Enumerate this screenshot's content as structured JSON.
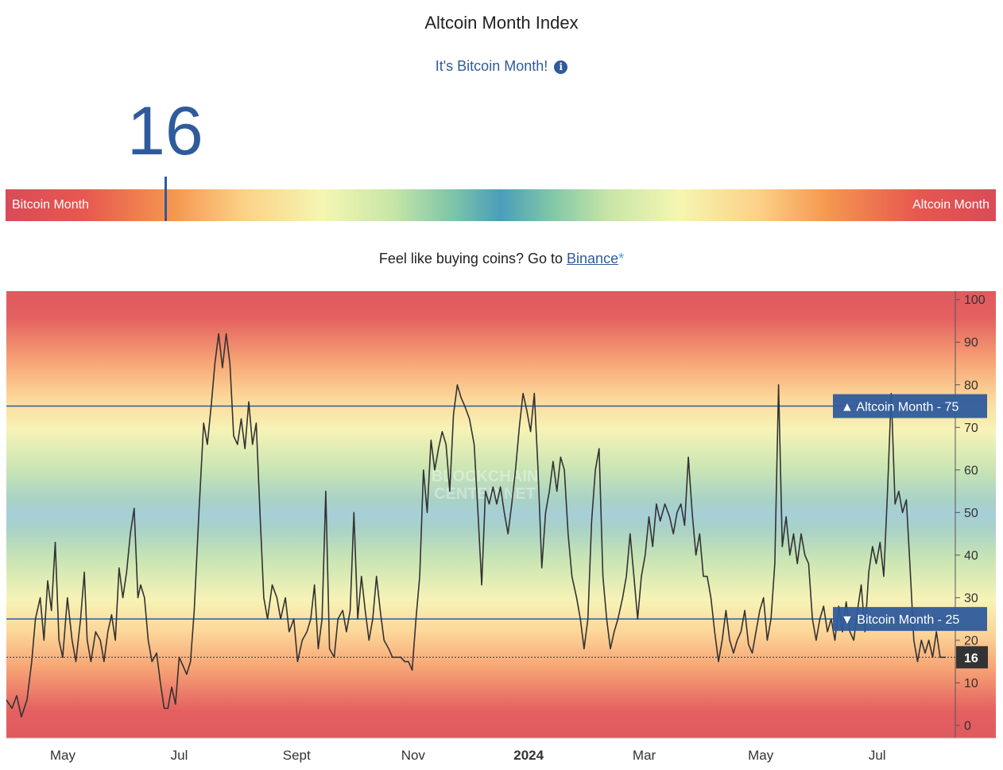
{
  "header": {
    "title": "Altcoin Month Index",
    "status": "It's Bitcoin Month!",
    "info_icon": "info-icon",
    "current_value": "16"
  },
  "gauge": {
    "left_label": "Bitcoin Month",
    "right_label": "Altcoin Month",
    "value": 16
  },
  "promo": {
    "text": "Feel like buying coins? Go to",
    "link_text": "Binance",
    "star": "*"
  },
  "watermark": [
    "BLOCKCHAIN",
    "CENTER.NET"
  ],
  "colors": {
    "accent": "#2f5b9c",
    "line": "#333333",
    "red": "#e05a5e",
    "blue_zone": "#a7cfd8"
  },
  "chart_data": {
    "type": "line",
    "title": "Altcoin Month Index",
    "ylim": [
      -3,
      102
    ],
    "yticks": [
      0,
      10,
      20,
      30,
      40,
      50,
      60,
      70,
      80,
      90,
      100
    ],
    "xlim": [
      0,
      100
    ],
    "x_labels": [
      {
        "label": "May",
        "x": 6.0,
        "bold": false
      },
      {
        "label": "Jul",
        "x": 18.4,
        "bold": false
      },
      {
        "label": "Sept",
        "x": 30.9,
        "bold": false
      },
      {
        "label": "Nov",
        "x": 43.3,
        "bold": false
      },
      {
        "label": "2024",
        "x": 55.6,
        "bold": true
      },
      {
        "label": "Mar",
        "x": 67.9,
        "bold": false
      },
      {
        "label": "May",
        "x": 80.3,
        "bold": false
      },
      {
        "label": "Jul",
        "x": 92.7,
        "bold": false
      }
    ],
    "thresholds": [
      {
        "name": "Altcoin Month",
        "value": 75,
        "symbol": "▲",
        "label": "Altcoin Month",
        "value_label": "75"
      },
      {
        "name": "Bitcoin Month",
        "value": 25,
        "symbol": "▼",
        "label": "Bitcoin Month",
        "value_label": "25"
      }
    ],
    "current": {
      "value": 16,
      "label": "16"
    },
    "series": [
      {
        "name": "Altcoin Month Index",
        "points": [
          [
            0.0,
            6
          ],
          [
            0.6,
            4
          ],
          [
            1.1,
            7
          ],
          [
            1.6,
            2
          ],
          [
            2.2,
            6
          ],
          [
            2.7,
            15
          ],
          [
            3.1,
            25
          ],
          [
            3.6,
            30
          ],
          [
            4.0,
            20
          ],
          [
            4.4,
            34
          ],
          [
            4.8,
            27
          ],
          [
            5.2,
            43
          ],
          [
            5.6,
            20
          ],
          [
            6.0,
            16
          ],
          [
            6.5,
            30
          ],
          [
            7.0,
            20
          ],
          [
            7.4,
            15
          ],
          [
            7.9,
            25
          ],
          [
            8.3,
            36
          ],
          [
            8.6,
            20
          ],
          [
            9.0,
            15
          ],
          [
            9.5,
            22
          ],
          [
            10.0,
            20
          ],
          [
            10.4,
            15
          ],
          [
            10.8,
            22
          ],
          [
            11.2,
            26
          ],
          [
            11.6,
            20
          ],
          [
            12.0,
            37
          ],
          [
            12.4,
            30
          ],
          [
            12.8,
            36
          ],
          [
            13.2,
            45
          ],
          [
            13.6,
            51
          ],
          [
            14.0,
            30
          ],
          [
            14.3,
            33
          ],
          [
            14.7,
            30
          ],
          [
            15.1,
            20
          ],
          [
            15.5,
            15
          ],
          [
            16.0,
            17
          ],
          [
            16.4,
            10
          ],
          [
            16.8,
            4
          ],
          [
            17.2,
            4
          ],
          [
            17.6,
            9
          ],
          [
            18.0,
            5
          ],
          [
            18.4,
            16
          ],
          [
            18.8,
            14
          ],
          [
            19.2,
            12
          ],
          [
            19.6,
            15
          ],
          [
            20.0,
            27
          ],
          [
            20.5,
            50
          ],
          [
            21.0,
            71
          ],
          [
            21.4,
            66
          ],
          [
            21.8,
            75
          ],
          [
            22.2,
            85
          ],
          [
            22.6,
            92
          ],
          [
            23.0,
            84
          ],
          [
            23.4,
            92
          ],
          [
            23.8,
            85
          ],
          [
            24.2,
            68
          ],
          [
            24.6,
            66
          ],
          [
            25.0,
            72
          ],
          [
            25.4,
            65
          ],
          [
            25.8,
            76
          ],
          [
            26.2,
            66
          ],
          [
            26.6,
            71
          ],
          [
            27.0,
            50
          ],
          [
            27.4,
            30
          ],
          [
            27.8,
            25
          ],
          [
            28.3,
            33
          ],
          [
            28.8,
            30
          ],
          [
            29.2,
            25
          ],
          [
            29.7,
            30
          ],
          [
            30.1,
            22
          ],
          [
            30.6,
            25
          ],
          [
            31.0,
            15
          ],
          [
            31.5,
            20
          ],
          [
            32.0,
            22
          ],
          [
            32.4,
            25
          ],
          [
            32.8,
            33
          ],
          [
            33.2,
            18
          ],
          [
            33.6,
            25
          ],
          [
            34.0,
            55
          ],
          [
            34.4,
            18
          ],
          [
            34.9,
            16
          ],
          [
            35.3,
            25
          ],
          [
            35.8,
            27
          ],
          [
            36.2,
            22
          ],
          [
            36.6,
            27
          ],
          [
            37.0,
            50
          ],
          [
            37.4,
            25
          ],
          [
            37.8,
            35
          ],
          [
            38.2,
            27
          ],
          [
            38.6,
            20
          ],
          [
            39.0,
            25
          ],
          [
            39.4,
            35
          ],
          [
            39.8,
            27
          ],
          [
            40.2,
            20
          ],
          [
            40.7,
            18
          ],
          [
            41.1,
            16
          ],
          [
            41.6,
            16
          ],
          [
            42.0,
            16
          ],
          [
            42.4,
            15
          ],
          [
            42.8,
            15
          ],
          [
            43.2,
            13
          ],
          [
            43.6,
            25
          ],
          [
            44.0,
            35
          ],
          [
            44.4,
            60
          ],
          [
            44.8,
            50
          ],
          [
            45.2,
            67
          ],
          [
            45.6,
            60
          ],
          [
            46.0,
            65
          ],
          [
            46.4,
            69
          ],
          [
            46.8,
            66
          ],
          [
            47.2,
            55
          ],
          [
            47.6,
            73
          ],
          [
            48.0,
            80
          ],
          [
            48.4,
            77
          ],
          [
            48.8,
            75
          ],
          [
            49.3,
            72
          ],
          [
            49.8,
            66
          ],
          [
            50.2,
            50
          ],
          [
            50.6,
            33
          ],
          [
            51.0,
            55
          ],
          [
            51.4,
            52
          ],
          [
            51.8,
            56
          ],
          [
            52.2,
            52
          ],
          [
            52.6,
            56
          ],
          [
            53.0,
            50
          ],
          [
            53.4,
            45
          ],
          [
            53.8,
            52
          ],
          [
            54.2,
            60
          ],
          [
            54.6,
            70
          ],
          [
            55.0,
            78
          ],
          [
            55.4,
            74
          ],
          [
            55.8,
            69
          ],
          [
            56.2,
            78
          ],
          [
            56.6,
            60
          ],
          [
            57.0,
            37
          ],
          [
            57.4,
            50
          ],
          [
            57.8,
            55
          ],
          [
            58.2,
            62
          ],
          [
            58.6,
            55
          ],
          [
            59.0,
            63
          ],
          [
            59.4,
            60
          ],
          [
            59.8,
            45
          ],
          [
            60.2,
            35
          ],
          [
            60.7,
            30
          ],
          [
            61.1,
            25
          ],
          [
            61.5,
            18
          ],
          [
            61.9,
            25
          ],
          [
            62.3,
            48
          ],
          [
            62.7,
            60
          ],
          [
            63.1,
            65
          ],
          [
            63.5,
            35
          ],
          [
            63.9,
            25
          ],
          [
            64.3,
            18
          ],
          [
            64.7,
            22
          ],
          [
            65.1,
            25
          ],
          [
            65.6,
            30
          ],
          [
            66.0,
            35
          ],
          [
            66.4,
            45
          ],
          [
            66.8,
            35
          ],
          [
            67.2,
            25
          ],
          [
            67.6,
            35
          ],
          [
            68.0,
            40
          ],
          [
            68.4,
            49
          ],
          [
            68.8,
            42
          ],
          [
            69.2,
            52
          ],
          [
            69.6,
            48
          ],
          [
            70.1,
            52
          ],
          [
            70.6,
            49
          ],
          [
            71.0,
            45
          ],
          [
            71.4,
            50
          ],
          [
            71.8,
            52
          ],
          [
            72.2,
            47
          ],
          [
            72.6,
            63
          ],
          [
            73.0,
            50
          ],
          [
            73.4,
            40
          ],
          [
            73.8,
            45
          ],
          [
            74.2,
            35
          ],
          [
            74.6,
            35
          ],
          [
            75.0,
            30
          ],
          [
            75.4,
            22
          ],
          [
            75.8,
            15
          ],
          [
            76.2,
            20
          ],
          [
            76.6,
            27
          ],
          [
            77.0,
            20
          ],
          [
            77.4,
            17
          ],
          [
            77.8,
            20
          ],
          [
            78.2,
            22
          ],
          [
            78.6,
            27
          ],
          [
            79.0,
            19
          ],
          [
            79.4,
            17
          ],
          [
            79.8,
            22
          ],
          [
            80.2,
            27
          ],
          [
            80.6,
            30
          ],
          [
            81.0,
            20
          ],
          [
            81.4,
            25
          ],
          [
            81.8,
            38
          ],
          [
            82.2,
            80
          ],
          [
            82.6,
            42
          ],
          [
            83.0,
            49
          ],
          [
            83.4,
            40
          ],
          [
            83.8,
            45
          ],
          [
            84.2,
            38
          ],
          [
            84.6,
            45
          ],
          [
            85.0,
            40
          ],
          [
            85.4,
            38
          ],
          [
            85.8,
            25
          ],
          [
            86.2,
            20
          ],
          [
            86.6,
            25
          ],
          [
            87.0,
            28
          ],
          [
            87.4,
            22
          ],
          [
            87.8,
            25
          ],
          [
            88.2,
            20
          ],
          [
            88.6,
            28
          ],
          [
            89.0,
            22
          ],
          [
            89.4,
            29
          ],
          [
            89.8,
            22
          ],
          [
            90.2,
            20
          ],
          [
            90.6,
            27
          ],
          [
            91.0,
            33
          ],
          [
            91.4,
            22
          ],
          [
            91.8,
            36
          ],
          [
            92.2,
            42
          ],
          [
            92.6,
            38
          ],
          [
            93.0,
            43
          ],
          [
            93.4,
            35
          ],
          [
            93.8,
            55
          ],
          [
            94.2,
            78
          ],
          [
            94.6,
            52
          ],
          [
            95.0,
            55
          ],
          [
            95.4,
            50
          ],
          [
            95.8,
            53
          ],
          [
            96.2,
            37
          ],
          [
            96.6,
            20
          ],
          [
            97.0,
            15
          ],
          [
            97.4,
            20
          ],
          [
            97.8,
            17
          ],
          [
            98.2,
            20
          ],
          [
            98.6,
            16
          ],
          [
            99.0,
            22
          ],
          [
            99.4,
            16
          ],
          [
            100.0,
            16
          ]
        ]
      }
    ]
  }
}
